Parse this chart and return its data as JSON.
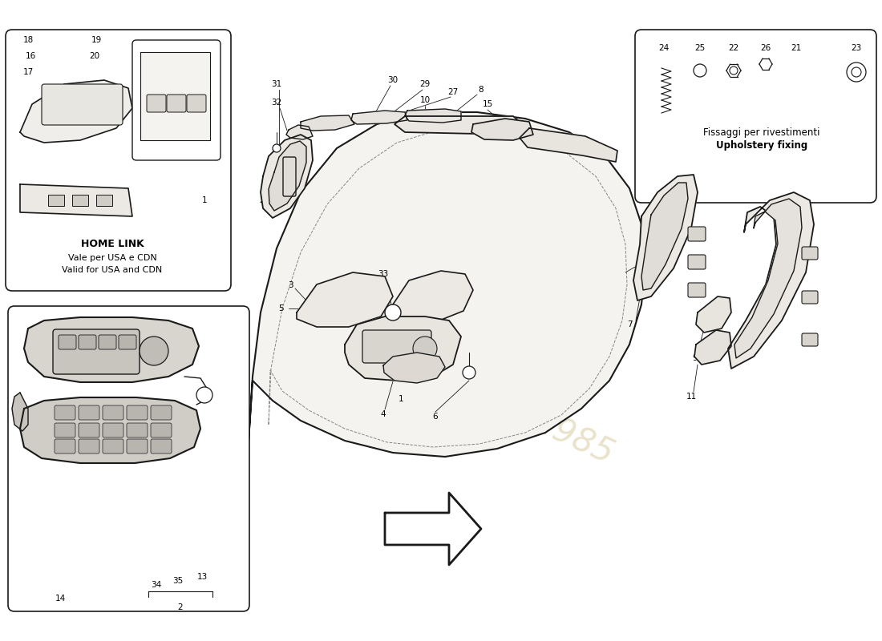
{
  "background_color": "#ffffff",
  "line_color": "#1a1a1a",
  "watermark_color": "#d4c89a",
  "upholstery_title1": "Fissaggi per rivestimenti",
  "upholstery_title2": "Upholstery fixing",
  "homelink_title": "HOME LINK",
  "homelink_sub1": "Vale per USA e CDN",
  "homelink_sub2": "Valid for USA and CDN",
  "fig_width": 11.0,
  "fig_height": 8.0
}
